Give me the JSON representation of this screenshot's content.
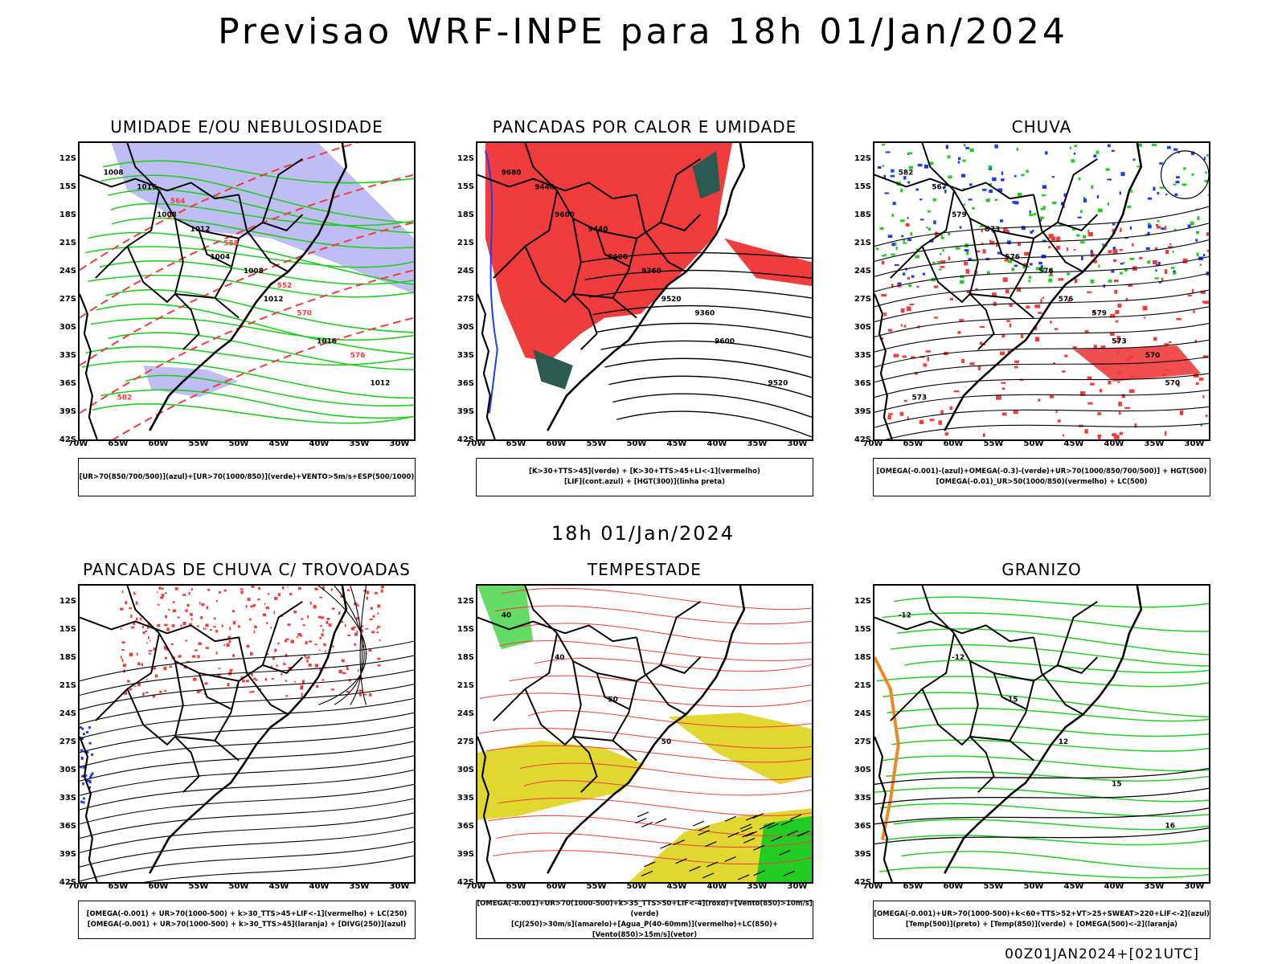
{
  "title": "Previsao WRF-INPE  para 18h 01/Jan/2024",
  "mid_label": "18h 01/Jan/2024",
  "footer": "00Z01JAN2024+[021UTC]",
  "lat_ticks": [
    "12S",
    "15S",
    "18S",
    "21S",
    "24S",
    "27S",
    "30S",
    "33S",
    "36S",
    "39S",
    "42S"
  ],
  "lon_ticks": [
    "70W",
    "65W",
    "60W",
    "55W",
    "50W",
    "45W",
    "40W",
    "35W",
    "30W"
  ],
  "colors": {
    "red": "#f03c3c",
    "green": "#22cc22",
    "blue": "#1c3cf0",
    "lavender": "#a8a8f0",
    "darkteal": "#2a5a50",
    "yellow": "#e0d830",
    "orange": "#ee8822"
  },
  "panels": [
    {
      "title": "UMIDADE E/OU NEBULOSIDADE",
      "legend": [
        "[UR>70(850/700/500)](azul)+[UR>70(1000/850)](verde)+VENTO>5m/s+ESP(500/1000)"
      ],
      "labels": [
        "1008",
        "1008",
        "1004",
        "1012",
        "1016",
        "1012",
        "1016",
        "1012",
        "1008",
        "570",
        "576",
        "582",
        "564",
        "558",
        "552"
      ]
    },
    {
      "title": "PANCADAS POR CALOR E UMIDADE",
      "legend": [
        "[K>30+TTS>45](verde) + [K>30+TTS>45+LI<-1](vermelho)",
        "[LIF](cont.azul) + [HGT(300)](linha preta)"
      ],
      "labels": [
        "9680",
        "9600",
        "9600",
        "9520",
        "9600",
        "9520",
        "9440",
        "9440",
        "9360",
        "9360"
      ]
    },
    {
      "title": "CHUVA",
      "legend": [
        "[OMEGA(-0.001)-(azul)+OMEGA(-0.3)-(verde)+UR>70(1000/850/700/500)] + HGT(500)",
        "[OMEGA(-0.01)_UR>50(1000/850)(vermelho) + LC(500)"
      ],
      "labels": [
        "582",
        "579",
        "576",
        "576",
        "573",
        "570",
        "567",
        "573",
        "576",
        "579",
        "570",
        "573"
      ]
    },
    {
      "title": "PANCADAS DE CHUVA C/ TROVOADAS",
      "legend": [
        "[OMEGA(-0.001) + UR>70(1000-500) + k>30_TTS>45+LIF<-1](vermelho) + LC(250)",
        "[OMEGA(-0.001) + UR>70(1000-500) + k>30_TTS>45](laranja) + [DIVG(250)](azul)"
      ],
      "labels": []
    },
    {
      "title": "TEMPESTADE",
      "legend": [
        "[OMEGA(-0.001)+UR>70(1000-500)+k>35_TTS>50+LIF<-4](roxo)+[Vento(850)>10m/s](verde)",
        "[CJ(250)>30m/s](amarelo)+[Agua_P(40-60mm)](vermelho)+LC(850)+[Vento(850)>15m/s](vetor)"
      ],
      "labels": [
        "40",
        "40",
        "50",
        "50"
      ]
    },
    {
      "title": "GRANIZO",
      "legend": [
        "[OMEGA(-0.001)+UR>70(1000-500)+k<60+TTS>52+VT>25+SWEAT>220+LIF<-2](azul)",
        "[Temp(500)](preto) + [Temp(850)](verde) + [OMEGA(500)<-2](laranja)"
      ],
      "labels": [
        "-12",
        "-12",
        "-15",
        "12",
        "15",
        "16"
      ]
    }
  ]
}
